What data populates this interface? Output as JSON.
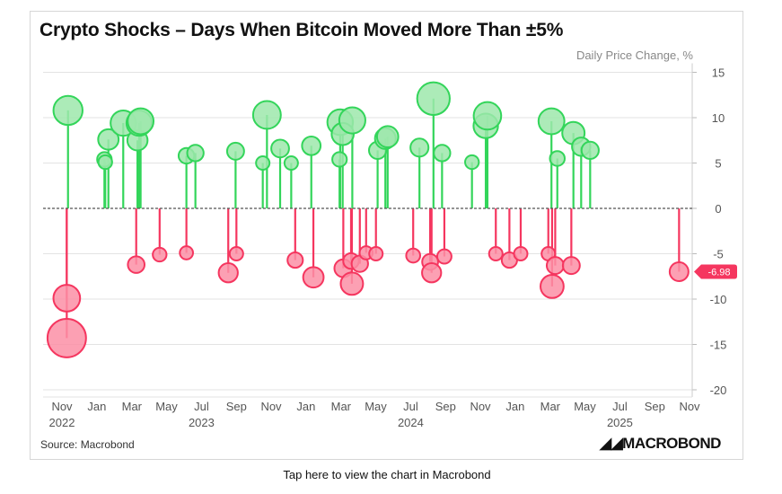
{
  "chart_data": {
    "type": "scatter",
    "subtype": "lollipop-bubble",
    "title": "Crypto Shocks – Days When Bitcoin Moved More Than ±5%",
    "ylabel": "Daily Price Change, %",
    "ylim": [
      -20,
      15
    ],
    "yticks": [
      15,
      10,
      5,
      0,
      -5,
      -10,
      -15,
      -20
    ],
    "xlim": [
      2022.833,
      2025.833
    ],
    "xtick_labels": [
      {
        "t": 2022.833,
        "label": "Nov"
      },
      {
        "t": 2023.0,
        "label": "Jan"
      },
      {
        "t": 2023.167,
        "label": "Mar"
      },
      {
        "t": 2023.333,
        "label": "May"
      },
      {
        "t": 2023.5,
        "label": "Jul"
      },
      {
        "t": 2023.667,
        "label": "Sep"
      },
      {
        "t": 2023.833,
        "label": "Nov"
      },
      {
        "t": 2024.0,
        "label": "Jan"
      },
      {
        "t": 2024.167,
        "label": "Mar"
      },
      {
        "t": 2024.333,
        "label": "May"
      },
      {
        "t": 2024.5,
        "label": "Jul"
      },
      {
        "t": 2024.667,
        "label": "Sep"
      },
      {
        "t": 2024.833,
        "label": "Nov"
      },
      {
        "t": 2025.0,
        "label": "Jan"
      },
      {
        "t": 2025.167,
        "label": "Mar"
      },
      {
        "t": 2025.333,
        "label": "May"
      },
      {
        "t": 2025.5,
        "label": "Jul"
      },
      {
        "t": 2025.667,
        "label": "Sep"
      },
      {
        "t": 2025.833,
        "label": "Nov"
      }
    ],
    "year_labels": [
      {
        "t": 2022.833,
        "label": "2022"
      },
      {
        "t": 2023.5,
        "label": "2023"
      },
      {
        "t": 2024.5,
        "label": "2024"
      },
      {
        "t": 2025.5,
        "label": "2025"
      }
    ],
    "colors": {
      "up": "#33d55a",
      "down": "#f5365f",
      "up_fill": "#9ee8ab",
      "down_fill": "#fb8fa6"
    },
    "last_value_label": "-6.98",
    "points": [
      {
        "t": 2022.862,
        "v": 10.8
      },
      {
        "t": 2022.856,
        "v": -9.9
      },
      {
        "t": 2022.856,
        "v": -14.3
      },
      {
        "t": 2023.036,
        "v": 5.4
      },
      {
        "t": 2023.04,
        "v": 5.1
      },
      {
        "t": 2023.055,
        "v": 7.6
      },
      {
        "t": 2023.126,
        "v": 9.4
      },
      {
        "t": 2023.188,
        "v": -6.2
      },
      {
        "t": 2023.194,
        "v": 7.5
      },
      {
        "t": 2023.202,
        "v": 9.4
      },
      {
        "t": 2023.209,
        "v": 9.6
      },
      {
        "t": 2023.3,
        "v": -5.1
      },
      {
        "t": 2023.428,
        "v": 5.8
      },
      {
        "t": 2023.428,
        "v": -4.9
      },
      {
        "t": 2023.471,
        "v": 6.1
      },
      {
        "t": 2023.628,
        "v": -7.1
      },
      {
        "t": 2023.663,
        "v": 6.3
      },
      {
        "t": 2023.667,
        "v": -5.0
      },
      {
        "t": 2023.793,
        "v": 5.0
      },
      {
        "t": 2023.813,
        "v": 10.3
      },
      {
        "t": 2023.876,
        "v": 6.6
      },
      {
        "t": 2023.929,
        "v": 5.0
      },
      {
        "t": 2023.948,
        "v": -5.7
      },
      {
        "t": 2024.025,
        "v": 6.9
      },
      {
        "t": 2024.035,
        "v": -7.6
      },
      {
        "t": 2024.16,
        "v": 5.4
      },
      {
        "t": 2024.163,
        "v": 9.5
      },
      {
        "t": 2024.175,
        "v": 8.2
      },
      {
        "t": 2024.178,
        "v": -6.6
      },
      {
        "t": 2024.215,
        "v": -5.8
      },
      {
        "t": 2024.219,
        "v": -8.3
      },
      {
        "t": 2024.221,
        "v": 9.7
      },
      {
        "t": 2024.257,
        "v": -6.1
      },
      {
        "t": 2024.287,
        "v": -4.9
      },
      {
        "t": 2024.334,
        "v": -5.0
      },
      {
        "t": 2024.342,
        "v": 6.4
      },
      {
        "t": 2024.379,
        "v": 7.7
      },
      {
        "t": 2024.39,
        "v": 7.9
      },
      {
        "t": 2024.512,
        "v": -5.2
      },
      {
        "t": 2024.542,
        "v": 6.7
      },
      {
        "t": 2024.593,
        "v": -5.9
      },
      {
        "t": 2024.6,
        "v": -7.1
      },
      {
        "t": 2024.609,
        "v": 12.1
      },
      {
        "t": 2024.65,
        "v": 6.1
      },
      {
        "t": 2024.661,
        "v": -5.3
      },
      {
        "t": 2024.793,
        "v": 5.1
      },
      {
        "t": 2024.859,
        "v": 9.1
      },
      {
        "t": 2024.867,
        "v": 10.2
      },
      {
        "t": 2024.907,
        "v": -5.0
      },
      {
        "t": 2024.972,
        "v": -5.7
      },
      {
        "t": 2025.026,
        "v": -5.0
      },
      {
        "t": 2025.158,
        "v": -5.0
      },
      {
        "t": 2025.173,
        "v": 9.6
      },
      {
        "t": 2025.176,
        "v": -8.6
      },
      {
        "t": 2025.191,
        "v": -6.3
      },
      {
        "t": 2025.201,
        "v": 5.5
      },
      {
        "t": 2025.268,
        "v": -6.3
      },
      {
        "t": 2025.278,
        "v": 8.3
      },
      {
        "t": 2025.315,
        "v": 6.8
      },
      {
        "t": 2025.358,
        "v": 6.4
      },
      {
        "t": 2025.783,
        "v": -6.98
      }
    ]
  },
  "footer": {
    "source": "Source: Macrobond",
    "logo": "MACROBOND",
    "tap_link": "Tap here to view the chart in Macrobond"
  }
}
